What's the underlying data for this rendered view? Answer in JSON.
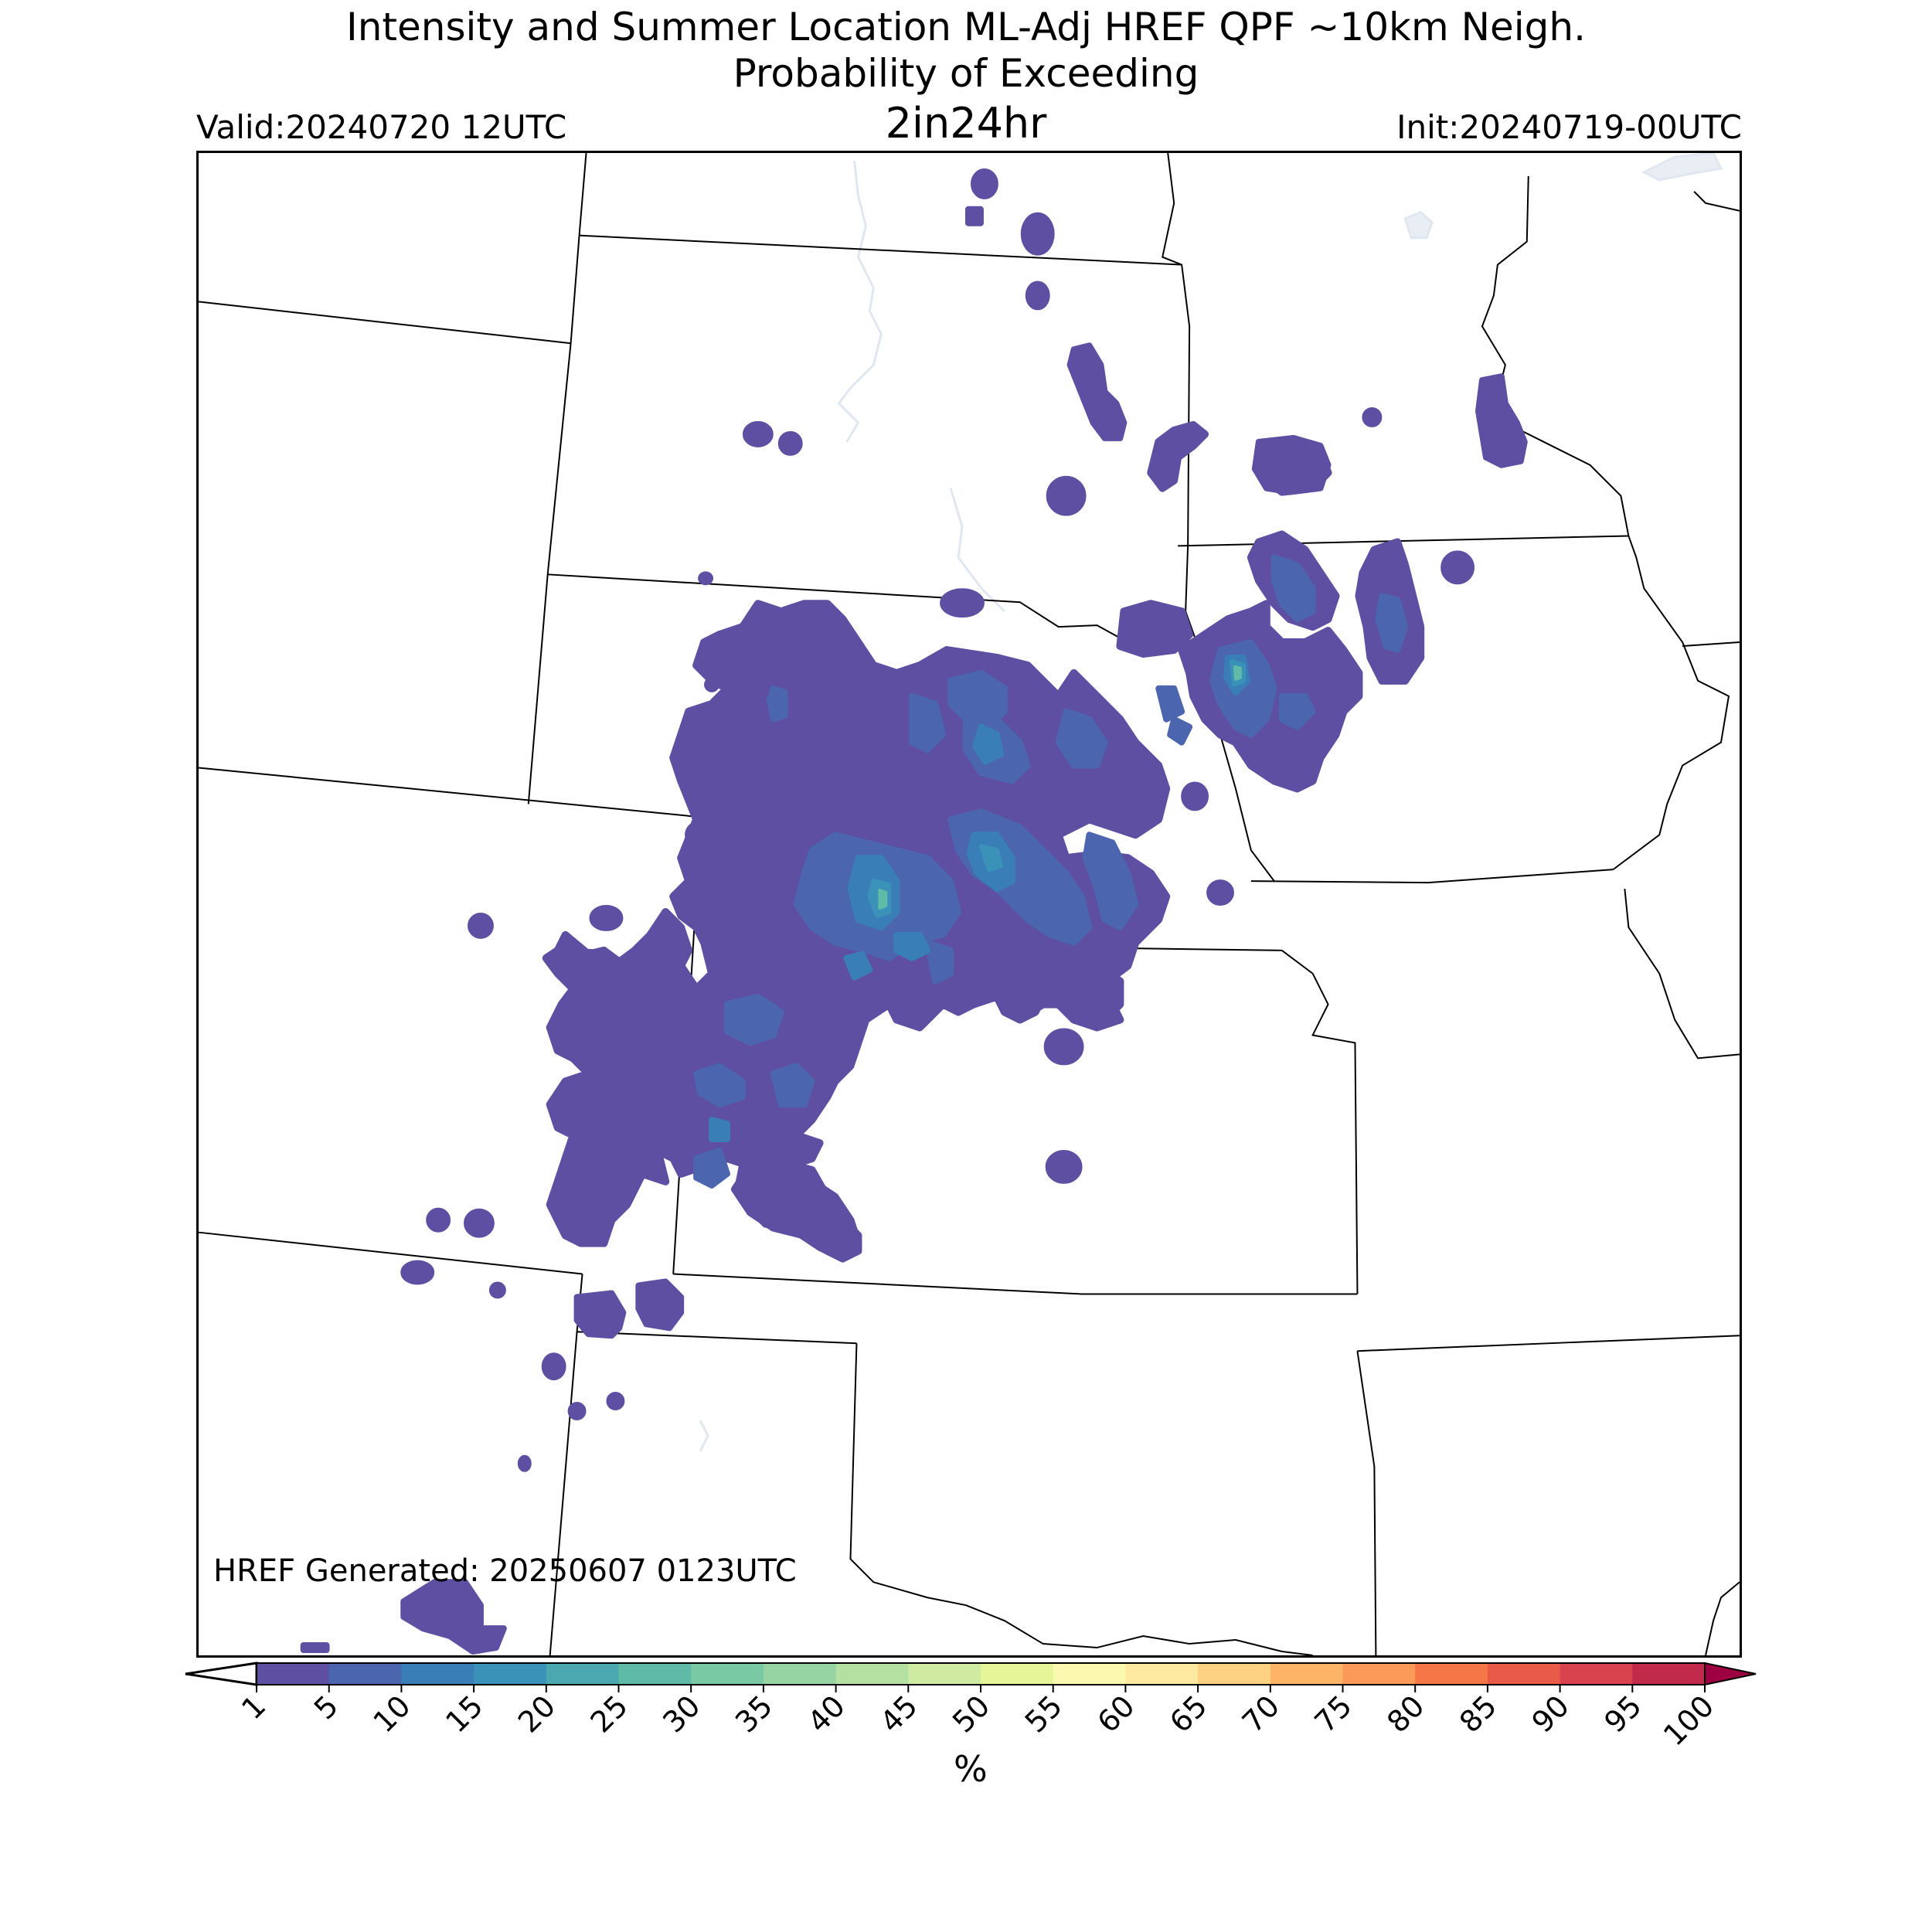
{
  "header": {
    "title_line1": "Intensity and Summer Location ML-Adj HREF QPF ~10km Neigh.",
    "title_line2": "Probability of Exceeding",
    "title_line3": "2in24hr",
    "valid": "Valid:20240720 12UTC",
    "init": "Init:20240719-00UTC"
  },
  "footer": {
    "generated": "HREF Generated: 20250607 0123UTC"
  },
  "colorbar": {
    "unit": "%",
    "ticks": [
      "1",
      "5",
      "10",
      "15",
      "20",
      "25",
      "30",
      "35",
      "40",
      "45",
      "50",
      "55",
      "60",
      "65",
      "70",
      "75",
      "80",
      "85",
      "90",
      "95",
      "100"
    ],
    "under_color": "#ffffff",
    "over_color": "#9e0142",
    "colors": [
      "#5e4fa2",
      "#4b65ae",
      "#3a7eb8",
      "#3b92b9",
      "#4aa8b0",
      "#5fbba8",
      "#79c9a5",
      "#97d4a4",
      "#b4e0a2",
      "#cfeba1",
      "#e6f598",
      "#fbf8b0",
      "#fee9a0",
      "#fdd182",
      "#fdb466",
      "#fb9a59",
      "#f57748",
      "#e85b49",
      "#d8434e",
      "#c12a4b",
      "#9e0142"
    ]
  },
  "map": {
    "water_color": "#e9eef5",
    "border_color": "#000000"
  }
}
